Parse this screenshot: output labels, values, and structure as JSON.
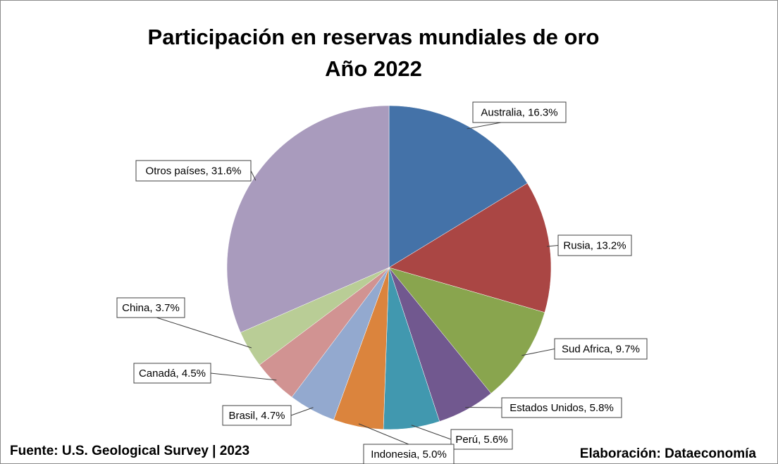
{
  "chart_data": {
    "type": "pie",
    "title": "Participación en reservas mundiales de oro",
    "subtitle": "Año 2022",
    "slices": [
      {
        "name": "Australia",
        "value": 16.3,
        "label": "Australia, 16.3%",
        "color": "#4472A8"
      },
      {
        "name": "Rusia",
        "value": 13.2,
        "label": "Rusia, 13.2%",
        "color": "#AA4644"
      },
      {
        "name": "Sud Africa",
        "value": 9.7,
        "label": "Sud Africa, 9.7%",
        "color": "#89A54E"
      },
      {
        "name": "Estados Unidos",
        "value": 5.8,
        "label": "Estados Unidos, 5.8%",
        "color": "#71588F"
      },
      {
        "name": "Perú",
        "value": 5.6,
        "label": "Perú, 5.6%",
        "color": "#4198AF"
      },
      {
        "name": "Indonesia",
        "value": 5.0,
        "label": "Indonesia, 5.0%",
        "color": "#DB843D"
      },
      {
        "name": "Brasil",
        "value": 4.7,
        "label": "Brasil, 4.7%",
        "color": "#93A9CF"
      },
      {
        "name": "Canadá",
        "value": 4.5,
        "label": "Canadá, 4.5%",
        "color": "#D19392"
      },
      {
        "name": "China",
        "value": 3.7,
        "label": "China, 3.7%",
        "color": "#B9CD96"
      },
      {
        "name": "Otros países",
        "value": 31.6,
        "label": "Otros países, 31.6%",
        "color": "#A99BBD"
      }
    ]
  },
  "footer": {
    "source": "Fuente: U.S. Geological Survey | 2023",
    "credit": "Elaboración: Dataeconomía"
  }
}
